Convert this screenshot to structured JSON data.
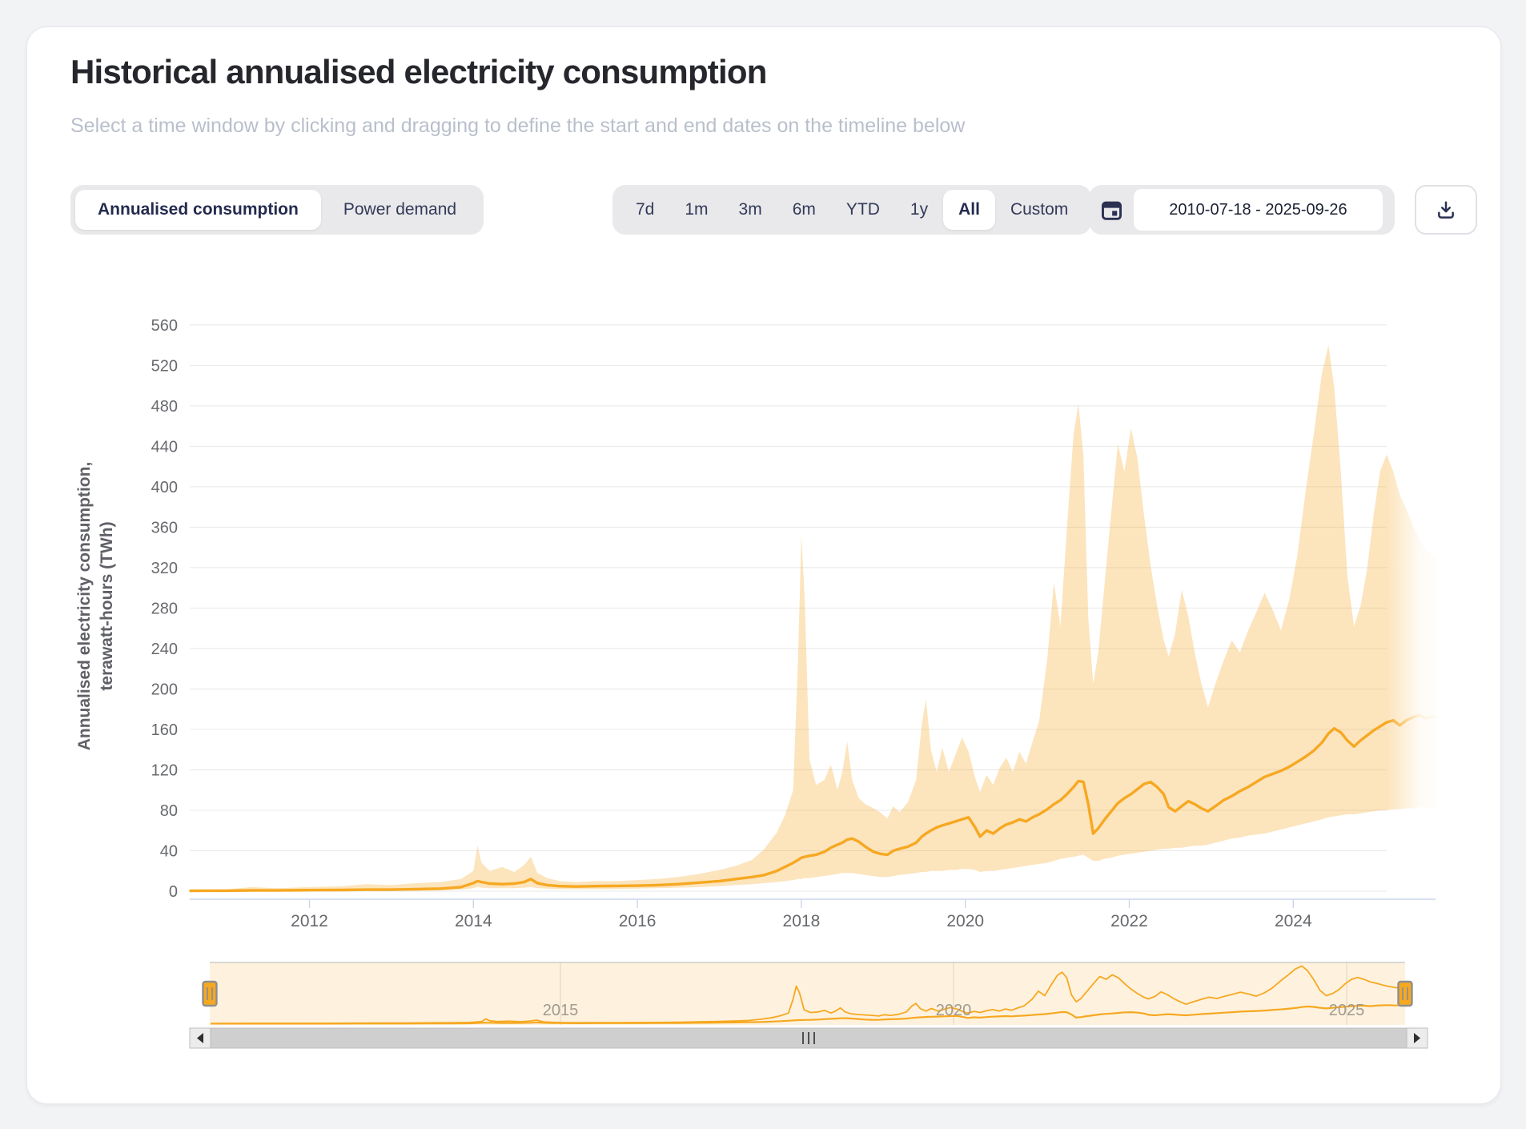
{
  "page": {
    "title": "Historical annualised electricity consumption",
    "subtitle": "Select a time window by clicking and dragging to define the start and end dates on the timeline below"
  },
  "series_toggle": {
    "options": [
      {
        "label": "Annualised consumption",
        "active": true
      },
      {
        "label": "Power demand",
        "active": false
      }
    ]
  },
  "range_selector": {
    "options": [
      "7d",
      "1m",
      "3m",
      "6m",
      "YTD",
      "1y",
      "All",
      "Custom"
    ],
    "active": "All"
  },
  "date_range": {
    "value": "2010-07-18 - 2025-09-26",
    "icon": "calendar-icon"
  },
  "download": {
    "icon": "download-icon"
  },
  "colors": {
    "accent_line": "#f6a821",
    "band_fill": "rgba(245,166,35,0.30)",
    "navigator_mask": "rgba(245,166,35,0.15)",
    "grid": "#e8e8e8",
    "axis_line": "#ccd6eb",
    "axis_label": "#67696d",
    "navy_text": "#333a58",
    "handle_fill": "#f6a821"
  },
  "chart_data": {
    "type": "line",
    "title": "Historical annualised electricity consumption",
    "ylabel_lines": [
      "Annualised electricity consumption,",
      "terawatt-hours (TWh)"
    ],
    "xlabel": "",
    "yticks": [
      0,
      40,
      80,
      120,
      160,
      200,
      240,
      280,
      320,
      360,
      400,
      440,
      480,
      520,
      560
    ],
    "xticks": [
      2012,
      2014,
      2016,
      2018,
      2020,
      2022,
      2024
    ],
    "xlim": [
      2010.54,
      2025.75
    ],
    "ylim": [
      0,
      560
    ],
    "grid": true,
    "legend": "none",
    "series": [
      {
        "name": "Annualised consumption (central estimate)",
        "type": "line",
        "color": "#f6a821"
      },
      {
        "name": "Uncertainty range (lower-upper)",
        "type": "arearange",
        "color": "rgba(245,166,35,0.30)"
      }
    ],
    "points_format": [
      "year_decimal",
      "lower_TWh",
      "mid_TWh",
      "upper_TWh"
    ],
    "points": [
      [
        2010.55,
        0,
        0.4,
        1
      ],
      [
        2011,
        0.1,
        0.5,
        2
      ],
      [
        2011.3,
        0.2,
        0.8,
        4
      ],
      [
        2011.6,
        0.2,
        0.7,
        3
      ],
      [
        2012,
        0.3,
        1,
        4
      ],
      [
        2012.4,
        0.3,
        1.2,
        5
      ],
      [
        2012.7,
        0.4,
        1.5,
        7
      ],
      [
        2013,
        0.4,
        1.5,
        6
      ],
      [
        2013.3,
        0.5,
        2,
        8
      ],
      [
        2013.6,
        0.8,
        2.5,
        9
      ],
      [
        2013.85,
        1.5,
        4,
        12
      ],
      [
        2014,
        3,
        8,
        20
      ],
      [
        2014.05,
        4,
        10,
        45
      ],
      [
        2014.1,
        3.5,
        9,
        28
      ],
      [
        2014.2,
        3,
        7.5,
        20
      ],
      [
        2014.35,
        3,
        7,
        24
      ],
      [
        2014.5,
        3,
        7.5,
        19
      ],
      [
        2014.62,
        3.5,
        9,
        26
      ],
      [
        2014.7,
        4,
        12,
        34
      ],
      [
        2014.78,
        3,
        8,
        18
      ],
      [
        2014.9,
        2.5,
        6,
        13
      ],
      [
        2015.05,
        2,
        5,
        10
      ],
      [
        2015.25,
        2,
        4.6,
        9
      ],
      [
        2015.5,
        2,
        5,
        10
      ],
      [
        2015.75,
        2.2,
        5.2,
        10
      ],
      [
        2016,
        2.5,
        5.5,
        11
      ],
      [
        2016.25,
        3,
        6,
        12
      ],
      [
        2016.5,
        3.5,
        7,
        14
      ],
      [
        2016.75,
        4,
        8.5,
        17
      ],
      [
        2017,
        5,
        10,
        21
      ],
      [
        2017.2,
        6,
        12,
        25
      ],
      [
        2017.4,
        7,
        14,
        31
      ],
      [
        2017.55,
        8,
        16,
        42
      ],
      [
        2017.7,
        9,
        20,
        58
      ],
      [
        2017.8,
        10,
        24,
        75
      ],
      [
        2017.9,
        11,
        28,
        100
      ],
      [
        2017.96,
        12,
        31,
        230
      ],
      [
        2018,
        12,
        33,
        352
      ],
      [
        2018.04,
        13,
        34,
        290
      ],
      [
        2018.1,
        13,
        35,
        130
      ],
      [
        2018.18,
        14,
        36,
        105
      ],
      [
        2018.28,
        15,
        39,
        110
      ],
      [
        2018.36,
        16,
        43,
        125
      ],
      [
        2018.44,
        17,
        46,
        100
      ],
      [
        2018.5,
        18,
        48,
        118
      ],
      [
        2018.56,
        18,
        51,
        148
      ],
      [
        2018.62,
        18,
        52,
        110
      ],
      [
        2018.7,
        17,
        49,
        92
      ],
      [
        2018.78,
        16,
        44,
        86
      ],
      [
        2018.88,
        15,
        39,
        82
      ],
      [
        2018.96,
        14,
        37,
        78
      ],
      [
        2019.05,
        14,
        36,
        72
      ],
      [
        2019.12,
        15,
        40,
        84
      ],
      [
        2019.2,
        16,
        42,
        78
      ],
      [
        2019.3,
        17,
        44,
        88
      ],
      [
        2019.4,
        18,
        48,
        110
      ],
      [
        2019.47,
        19,
        54,
        165
      ],
      [
        2019.52,
        19,
        57,
        190
      ],
      [
        2019.58,
        20,
        60,
        140
      ],
      [
        2019.65,
        20,
        63,
        118
      ],
      [
        2019.72,
        20,
        65,
        142
      ],
      [
        2019.8,
        21,
        67,
        118
      ],
      [
        2019.88,
        21,
        69,
        135
      ],
      [
        2019.96,
        22,
        71,
        152
      ],
      [
        2020.04,
        22,
        73,
        138
      ],
      [
        2020.12,
        21,
        63,
        112
      ],
      [
        2020.18,
        19,
        54,
        98
      ],
      [
        2020.26,
        20,
        60,
        115
      ],
      [
        2020.34,
        20,
        57,
        105
      ],
      [
        2020.42,
        21,
        62,
        122
      ],
      [
        2020.5,
        22,
        66,
        132
      ],
      [
        2020.58,
        23,
        68,
        118
      ],
      [
        2020.66,
        24,
        71,
        138
      ],
      [
        2020.74,
        25,
        69,
        126
      ],
      [
        2020.82,
        26,
        73,
        148
      ],
      [
        2020.9,
        27,
        76,
        168
      ],
      [
        2021,
        28,
        81,
        230
      ],
      [
        2021.08,
        30,
        86,
        305
      ],
      [
        2021.16,
        32,
        90,
        262
      ],
      [
        2021.24,
        33,
        96,
        360
      ],
      [
        2021.32,
        34,
        103,
        452
      ],
      [
        2021.38,
        35,
        109,
        482
      ],
      [
        2021.44,
        36,
        108,
        430
      ],
      [
        2021.5,
        33,
        86,
        270
      ],
      [
        2021.56,
        30,
        57,
        205
      ],
      [
        2021.62,
        30,
        62,
        235
      ],
      [
        2021.7,
        32,
        71,
        305
      ],
      [
        2021.78,
        33,
        79,
        375
      ],
      [
        2021.86,
        35,
        87,
        442
      ],
      [
        2021.94,
        36,
        92,
        415
      ],
      [
        2022.02,
        37,
        96,
        458
      ],
      [
        2022.1,
        38,
        101,
        428
      ],
      [
        2022.18,
        39,
        106,
        372
      ],
      [
        2022.26,
        40,
        108,
        322
      ],
      [
        2022.34,
        41,
        103,
        282
      ],
      [
        2022.42,
        42,
        96,
        248
      ],
      [
        2022.48,
        42,
        83,
        232
      ],
      [
        2022.56,
        43,
        79,
        255
      ],
      [
        2022.64,
        43,
        84,
        298
      ],
      [
        2022.72,
        44,
        89,
        272
      ],
      [
        2022.8,
        45,
        86,
        235
      ],
      [
        2022.88,
        45,
        82,
        205
      ],
      [
        2022.96,
        46,
        79,
        182
      ],
      [
        2023.05,
        48,
        84,
        205
      ],
      [
        2023.15,
        50,
        90,
        228
      ],
      [
        2023.25,
        52,
        94,
        248
      ],
      [
        2023.35,
        53,
        99,
        236
      ],
      [
        2023.45,
        55,
        103,
        258
      ],
      [
        2023.55,
        56,
        108,
        276
      ],
      [
        2023.65,
        57,
        113,
        295
      ],
      [
        2023.75,
        59,
        116,
        278
      ],
      [
        2023.85,
        61,
        119,
        258
      ],
      [
        2023.95,
        63,
        123,
        288
      ],
      [
        2024.05,
        65,
        128,
        332
      ],
      [
        2024.15,
        67,
        133,
        395
      ],
      [
        2024.25,
        69,
        139,
        452
      ],
      [
        2024.35,
        71,
        147,
        512
      ],
      [
        2024.43,
        73,
        156,
        540
      ],
      [
        2024.5,
        74,
        161,
        498
      ],
      [
        2024.58,
        75,
        157,
        415
      ],
      [
        2024.66,
        76,
        149,
        312
      ],
      [
        2024.74,
        76,
        143,
        262
      ],
      [
        2024.82,
        77,
        149,
        282
      ],
      [
        2024.9,
        78,
        154,
        318
      ],
      [
        2024.98,
        79,
        159,
        372
      ],
      [
        2025.06,
        80,
        163,
        415
      ],
      [
        2025.14,
        80,
        167,
        432
      ],
      [
        2025.22,
        81,
        169,
        415
      ],
      [
        2025.3,
        81,
        164,
        392
      ],
      [
        2025.38,
        82,
        169,
        378
      ],
      [
        2025.46,
        82,
        172,
        362
      ],
      [
        2025.54,
        83,
        174,
        348
      ],
      [
        2025.62,
        83,
        171,
        338
      ],
      [
        2025.7,
        83,
        173,
        332
      ],
      [
        2025.74,
        84,
        172,
        328
      ]
    ]
  },
  "navigator": {
    "axis_labels": [
      {
        "label": "2015",
        "year": 2015
      },
      {
        "label": "2020",
        "year": 2020
      },
      {
        "label": "2025",
        "year": 2025
      }
    ]
  },
  "scrollbar": {
    "grip": "III"
  }
}
